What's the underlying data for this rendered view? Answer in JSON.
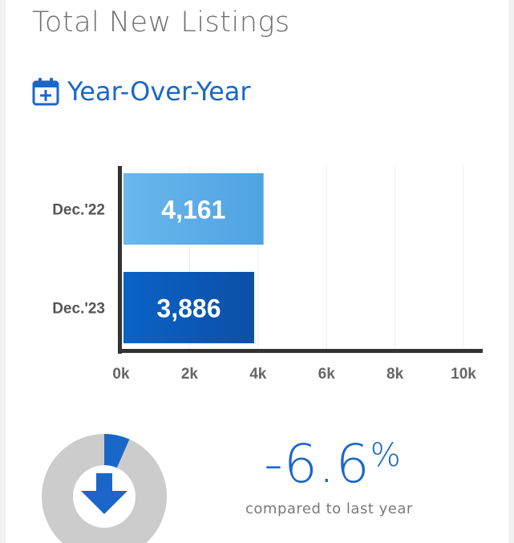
{
  "header": {
    "title": "Total New Listings",
    "subtitle": "Year-Over-Year",
    "subtitle_icon": "calendar-plus-icon"
  },
  "chart_data": {
    "type": "bar",
    "orientation": "horizontal",
    "categories": [
      "Dec.'22",
      "Dec.'23"
    ],
    "values": [
      4161,
      3886
    ],
    "value_labels": [
      "4,161",
      "3,886"
    ],
    "xlim": [
      0,
      10000
    ],
    "x_ticks": [
      0,
      2000,
      4000,
      6000,
      8000,
      10000
    ],
    "x_tick_labels": [
      "0k",
      "2k",
      "4k",
      "6k",
      "8k",
      "10k"
    ],
    "grid": true,
    "colors": [
      "#5aaee6",
      "#0d5cb8"
    ]
  },
  "summary": {
    "change_value": "-6.6",
    "change_unit": "%",
    "change_fraction": 0.066,
    "direction": "down",
    "compare_text": "compared to last year",
    "accent_color": "#1a67c9",
    "ring_color": "#cccccc"
  }
}
